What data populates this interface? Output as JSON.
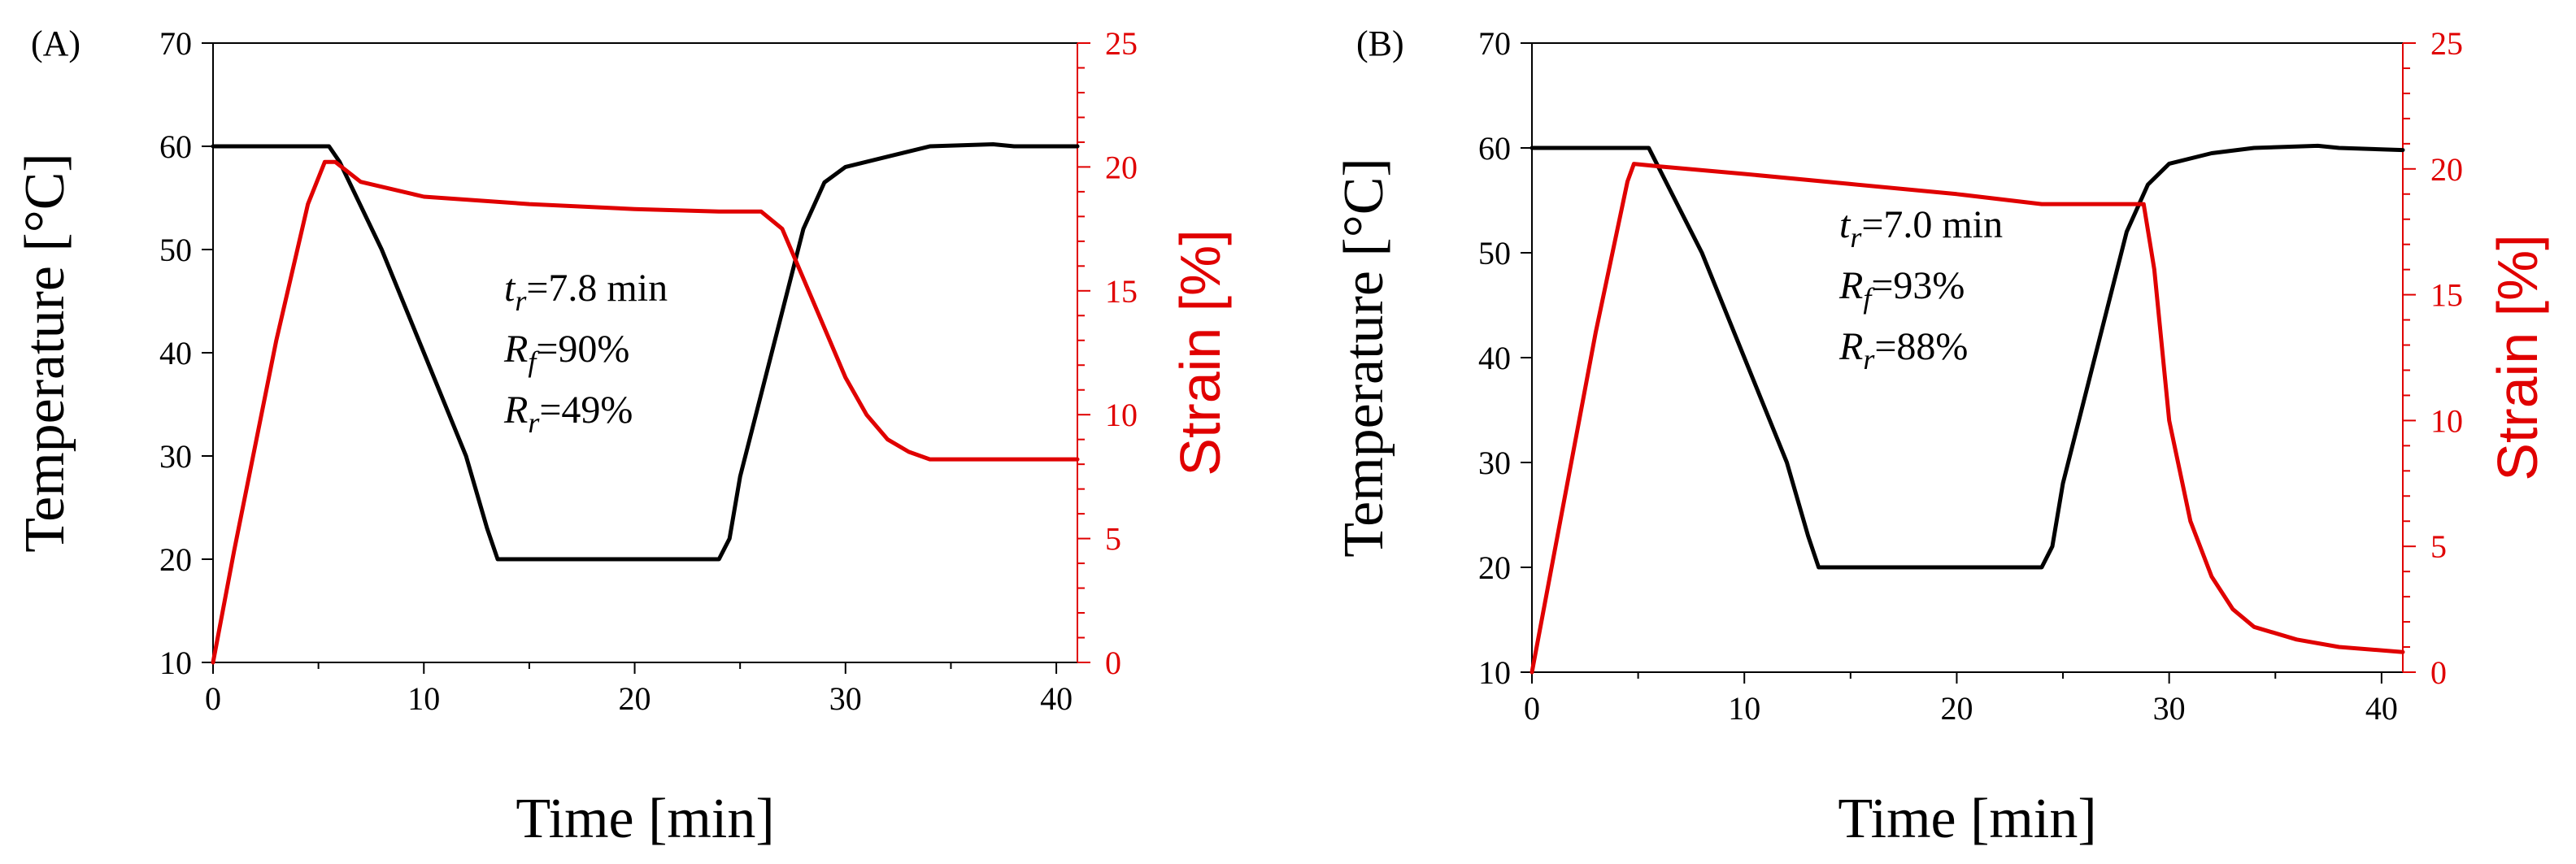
{
  "chart_data": [
    {
      "type": "line",
      "panel_label": "(A)",
      "xlabel": "Time [min]",
      "ylabel": "Temperature [°C]",
      "y2label": "Strain [%]",
      "xlim": [
        0,
        41
      ],
      "ylim": [
        10,
        70
      ],
      "y2lim": [
        0,
        25
      ],
      "xticks": [
        "0",
        "10",
        "20",
        "30",
        "40"
      ],
      "yticks": [
        "10",
        "20",
        "30",
        "40",
        "50",
        "60",
        "70"
      ],
      "y2ticks": [
        "0",
        "5",
        "10",
        "15",
        "20",
        "25"
      ],
      "annotations": {
        "tr": {
          "sym": "t",
          "sub": "r",
          "rest": "=7.8 min"
        },
        "rf": {
          "sym": "R",
          "sub": "f",
          "rest": "=90%"
        },
        "rr": {
          "sym": "R",
          "sub": "r",
          "rest": "=49%"
        }
      },
      "series": [
        {
          "name": "Temperature",
          "axis": "left",
          "color": "#000000",
          "x": [
            0,
            5.5,
            6,
            8,
            10,
            12,
            13,
            13.5,
            24,
            24.5,
            25,
            26.5,
            28,
            29,
            30,
            32,
            34,
            37,
            38,
            41
          ],
          "y": [
            60,
            60,
            58.5,
            50,
            40,
            30,
            23,
            20,
            20,
            22,
            28,
            40,
            52,
            56.5,
            58,
            59,
            60,
            60.2,
            60,
            60
          ]
        },
        {
          "name": "Strain",
          "axis": "right",
          "color": "#e00000",
          "x": [
            0,
            1,
            3,
            4.5,
            5.3,
            5.8,
            7,
            10,
            15,
            20,
            24,
            26,
            27,
            28,
            29,
            30,
            31,
            32,
            33,
            34,
            35,
            41
          ],
          "y": [
            0,
            4.5,
            13,
            18.5,
            20.2,
            20.2,
            19.4,
            18.8,
            18.5,
            18.3,
            18.2,
            18.2,
            17.5,
            15.5,
            13.5,
            11.5,
            10,
            9,
            8.5,
            8.2,
            8.2,
            8.2
          ]
        }
      ]
    },
    {
      "type": "line",
      "panel_label": "(B)",
      "xlabel": "Time [min]",
      "ylabel": "Temperature [°C]",
      "y2label": "Strain [%]",
      "xlim": [
        0,
        41
      ],
      "ylim": [
        10,
        70
      ],
      "y2lim": [
        0,
        25
      ],
      "xticks": [
        "0",
        "10",
        "20",
        "30",
        "40"
      ],
      "yticks": [
        "10",
        "20",
        "30",
        "40",
        "50",
        "60",
        "70"
      ],
      "y2ticks": [
        "0",
        "5",
        "10",
        "15",
        "20",
        "25"
      ],
      "annotations": {
        "tr": {
          "sym": "t",
          "sub": "r",
          "rest": "=7.0 min"
        },
        "rf": {
          "sym": "R",
          "sub": "f",
          "rest": "=93%"
        },
        "rr": {
          "sym": "R",
          "sub": "r",
          "rest": "=88%"
        }
      },
      "series": [
        {
          "name": "Temperature",
          "axis": "left",
          "color": "#000000",
          "x": [
            0,
            5.5,
            6,
            8,
            10,
            12,
            13,
            13.5,
            24,
            24.5,
            25,
            26.5,
            28,
            29,
            30,
            32,
            34,
            37,
            38,
            41
          ],
          "y": [
            60,
            60,
            58,
            50,
            40,
            30,
            23,
            20,
            20,
            22,
            28,
            40,
            52,
            56.5,
            58.5,
            59.5,
            60,
            60.2,
            60,
            59.8
          ]
        },
        {
          "name": "Strain",
          "axis": "right",
          "color": "#e00000",
          "x": [
            0,
            1,
            3,
            4.5,
            4.8,
            6,
            10,
            15,
            20,
            24,
            26,
            28,
            28.8,
            29.3,
            30,
            31,
            32,
            33,
            34,
            36,
            38,
            41
          ],
          "y": [
            0,
            4.5,
            13.5,
            19.5,
            20.2,
            20.1,
            19.8,
            19.4,
            19,
            18.6,
            18.6,
            18.6,
            18.6,
            16,
            10,
            6,
            3.8,
            2.5,
            1.8,
            1.3,
            1.0,
            0.8
          ]
        }
      ]
    }
  ]
}
